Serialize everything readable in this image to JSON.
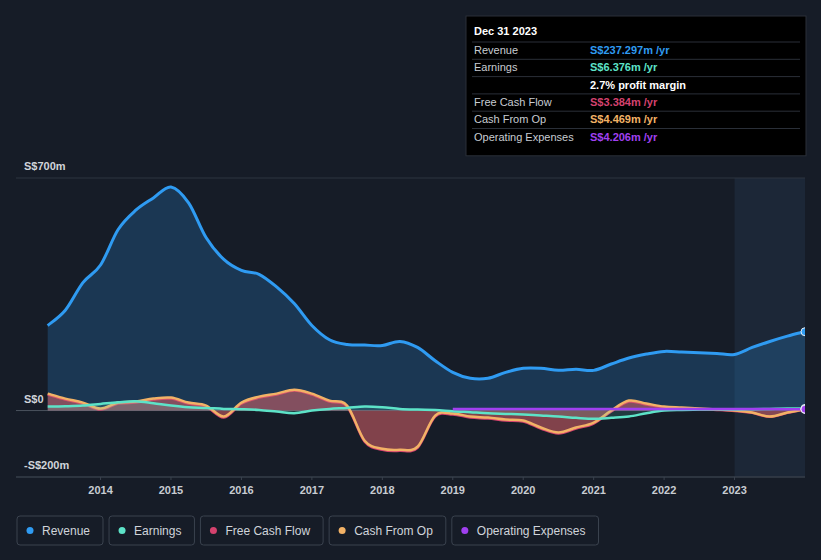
{
  "chart_data": {
    "type": "line",
    "x": [
      2013.25,
      2013.5,
      2013.75,
      2014,
      2014.25,
      2014.5,
      2014.75,
      2015,
      2015.25,
      2015.5,
      2015.75,
      2016,
      2016.25,
      2016.5,
      2016.75,
      2017,
      2017.25,
      2017.5,
      2017.75,
      2018,
      2018.25,
      2018.5,
      2018.75,
      2019,
      2019.25,
      2019.5,
      2019.75,
      2020,
      2020.25,
      2020.5,
      2020.75,
      2021,
      2021.25,
      2021.5,
      2021.75,
      2022,
      2022.25,
      2022.5,
      2022.75,
      2023,
      2023.25,
      2023.5,
      2023.75,
      2024
    ],
    "xlim": [
      2012.8,
      2024.0
    ],
    "xticks": [
      2014,
      2015,
      2016,
      2017,
      2018,
      2019,
      2020,
      2021,
      2022,
      2023
    ],
    "ylim": [
      -200,
      700
    ],
    "yticks": [
      {
        "value": -200,
        "label": "-S$200m"
      },
      {
        "value": 0,
        "label": "S$0"
      },
      {
        "value": 700,
        "label": "S$700m"
      }
    ],
    "grid": true,
    "legend": "bottom",
    "series": [
      {
        "name": "Revenue",
        "color": "#2f9bf2",
        "values": [
          256,
          302,
          385,
          438,
          545,
          603,
          640,
          673,
          625,
          520,
          455,
          422,
          410,
          372,
          322,
          256,
          213,
          199,
          197,
          196,
          208,
          190,
          150,
          115,
          97,
          97,
          115,
          127,
          127,
          121,
          124,
          121,
          140,
          158,
          170,
          178,
          176,
          174,
          172,
          169,
          190,
          208,
          224,
          237.297
        ]
      },
      {
        "name": "Earnings",
        "color": "#5de3c8",
        "values": [
          12,
          13,
          15,
          20,
          25,
          28,
          22,
          15,
          10,
          8,
          5,
          4,
          2,
          -3,
          -8,
          0,
          5,
          8,
          12,
          10,
          5,
          3,
          2,
          -2,
          -5,
          -8,
          -10,
          -12,
          -15,
          -18,
          -22,
          -25,
          -22,
          -18,
          -8,
          0,
          2,
          3,
          4,
          3,
          4,
          5,
          6,
          6.376
        ]
      },
      {
        "name": "Free Cash Flow",
        "color": "#d4426e",
        "values": [
          48,
          33,
          21,
          3,
          21,
          24,
          33,
          36,
          21,
          12,
          -21,
          21,
          39,
          48,
          60,
          48,
          27,
          12,
          -94,
          -118,
          -121,
          -112,
          -18,
          -12,
          -21,
          -24,
          -30,
          -33,
          -54,
          -69,
          -54,
          -39,
          -3,
          27,
          18,
          10,
          7,
          4,
          2,
          -1,
          -7,
          -19,
          -7,
          3.384
        ]
      },
      {
        "name": "Cash From Op",
        "color": "#f2b266",
        "values": [
          51,
          36,
          24,
          6,
          24,
          27,
          36,
          39,
          24,
          15,
          -18,
          24,
          42,
          51,
          63,
          51,
          30,
          15,
          -91,
          -115,
          -118,
          -109,
          -15,
          -9,
          -18,
          -21,
          -27,
          -30,
          -51,
          -66,
          -51,
          -36,
          0,
          30,
          21,
          12,
          9,
          6,
          3,
          0,
          -6,
          -18,
          -6,
          4.469
        ]
      },
      {
        "name": "Operating Expenses",
        "color": "#a040f0",
        "values": [
          null,
          null,
          null,
          null,
          null,
          null,
          null,
          null,
          null,
          null,
          null,
          null,
          null,
          null,
          null,
          null,
          null,
          null,
          null,
          null,
          null,
          null,
          null,
          5,
          5,
          5,
          5,
          5,
          5,
          5,
          5,
          5,
          5,
          5,
          5,
          5,
          5,
          5,
          5,
          4.8,
          4.6,
          4.4,
          4.3,
          4.206
        ]
      }
    ],
    "tooltip": {
      "title": "Dec 31 2023",
      "rows": [
        {
          "label": "Revenue",
          "value": "S$237.297m /yr",
          "color": "#2f9bf2"
        },
        {
          "label": "Earnings",
          "value": "S$6.376m /yr",
          "color": "#5de3c8"
        },
        {
          "value": "2.7% profit margin",
          "color": "#ffffff"
        },
        {
          "label": "Free Cash Flow",
          "value": "S$3.384m /yr",
          "color": "#d4426e"
        },
        {
          "label": "Cash From Op",
          "value": "S$4.469m /yr",
          "color": "#f2b266"
        },
        {
          "label": "Operating Expenses",
          "value": "S$4.206m /yr",
          "color": "#a040f0"
        }
      ]
    }
  }
}
